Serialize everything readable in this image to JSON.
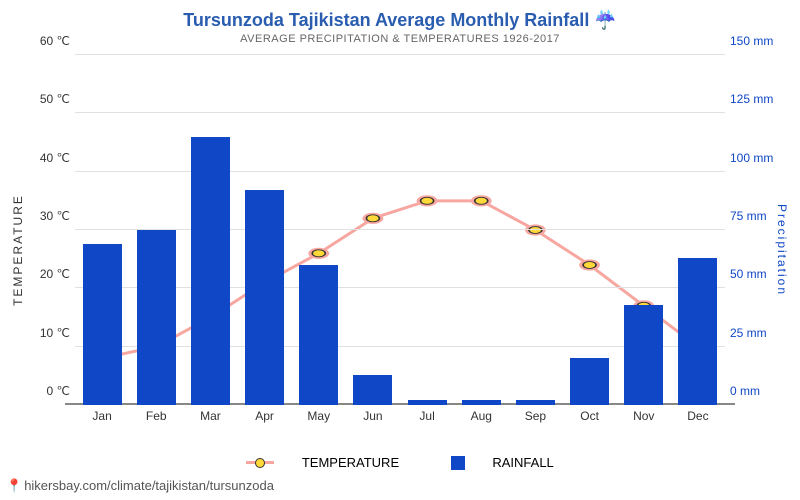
{
  "chart": {
    "type": "bar+line",
    "title": "Tursunzoda Tajikistan Average Monthly Rainfall ☔",
    "title_color": "#2a5db0",
    "subtitle": "AVERAGE PRECIPITATION & TEMPERATURES 1926-2017",
    "categories": [
      "Jan",
      "Feb",
      "Mar",
      "Apr",
      "May",
      "Jun",
      "Jul",
      "Aug",
      "Sep",
      "Oct",
      "Nov",
      "Dec"
    ],
    "rainfall_mm": [
      69,
      75,
      115,
      92,
      60,
      13,
      2,
      2,
      2,
      20,
      43,
      63
    ],
    "temperature_c": [
      8,
      10,
      15,
      21,
      26,
      32,
      35,
      35,
      30,
      24,
      17,
      10
    ],
    "bar_color": "#1047c6",
    "line_color": "#f7a6a0",
    "marker_fill": "#ffd83a",
    "marker_stroke": "#333333",
    "left_axis": {
      "title": "TEMPERATURE",
      "unit": "℃",
      "min": 0,
      "max": 60,
      "step": 10,
      "color": "#333333"
    },
    "right_axis": {
      "title": "Precipitation",
      "unit": "mm",
      "min": 0,
      "max": 150,
      "step": 25,
      "color": "#1047c6"
    },
    "legend": {
      "temperature": "TEMPERATURE",
      "rainfall": "RAINFALL"
    },
    "background_color": "#ffffff",
    "grid_color": "#e0e0e0",
    "bar_width_ratio": 0.72,
    "title_fontsize": 18,
    "subtitle_fontsize": 11,
    "tick_fontsize": 12
  },
  "source": {
    "pin_icon": "📍",
    "text": "hikersbay.com/climate/tajikistan/tursunzoda"
  }
}
